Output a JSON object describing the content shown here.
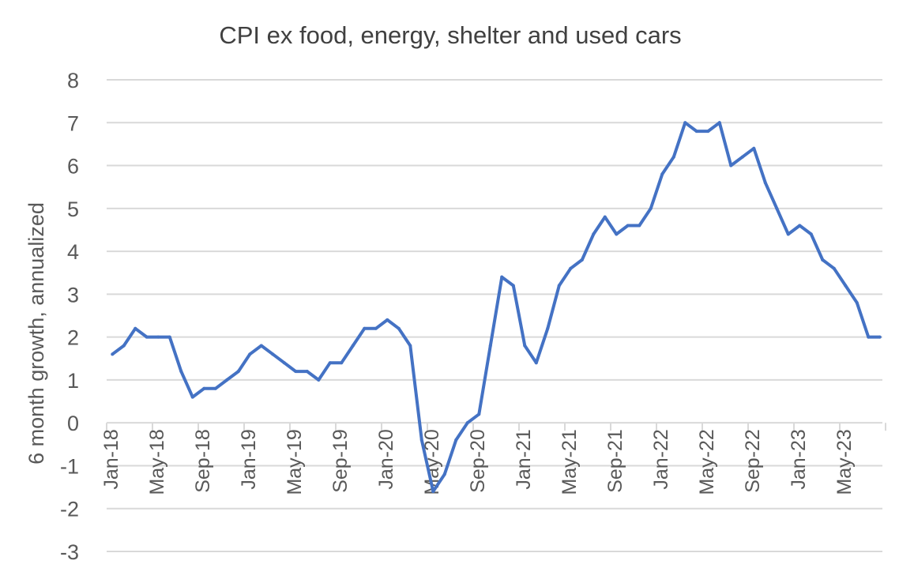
{
  "chart_data": {
    "type": "line",
    "title": "CPI ex food, energy, shelter and used cars",
    "xlabel": "",
    "ylabel": "6 month growth, annualized",
    "ylim": [
      -3,
      8
    ],
    "yticks": [
      "8",
      "7",
      "6",
      "5",
      "4",
      "3",
      "2",
      "1",
      "0",
      "-1",
      "-2",
      "-3"
    ],
    "grid": true,
    "line_color": "#4472C4",
    "x": [
      "Jan-18",
      "Feb-18",
      "Mar-18",
      "Apr-18",
      "May-18",
      "Jun-18",
      "Jul-18",
      "Aug-18",
      "Sep-18",
      "Oct-18",
      "Nov-18",
      "Dec-18",
      "Jan-19",
      "Feb-19",
      "Mar-19",
      "Apr-19",
      "May-19",
      "Jun-19",
      "Jul-19",
      "Aug-19",
      "Sep-19",
      "Oct-19",
      "Nov-19",
      "Dec-19",
      "Jan-20",
      "Feb-20",
      "Mar-20",
      "Apr-20",
      "May-20",
      "Jun-20",
      "Jul-20",
      "Aug-20",
      "Sep-20",
      "Oct-20",
      "Nov-20",
      "Dec-20",
      "Jan-21",
      "Feb-21",
      "Mar-21",
      "Apr-21",
      "May-21",
      "Jun-21",
      "Jul-21",
      "Aug-21",
      "Sep-21",
      "Oct-21",
      "Nov-21",
      "Dec-21",
      "Jan-22",
      "Feb-22",
      "Mar-22",
      "Apr-22",
      "May-22",
      "Jun-22",
      "Jul-22",
      "Aug-22",
      "Sep-22",
      "Oct-22",
      "Nov-22",
      "Dec-22",
      "Jan-23",
      "Feb-23",
      "Mar-23",
      "Apr-23",
      "May-23",
      "Jun-23",
      "Jul-23",
      "Aug-23"
    ],
    "xtick_labels": [
      "Jan-18",
      "May-18",
      "Sep-18",
      "Jan-19",
      "May-19",
      "Sep-19",
      "Jan-20",
      "May-20",
      "Sep-20",
      "Jan-21",
      "May-21",
      "Sep-21",
      "Jan-22",
      "May-22",
      "Sep-22",
      "Jan-23",
      "May-23"
    ],
    "values": [
      1.6,
      1.8,
      2.2,
      2.0,
      2.0,
      2.0,
      1.2,
      0.6,
      0.8,
      0.8,
      1.0,
      1.2,
      1.6,
      1.8,
      1.6,
      1.4,
      1.2,
      1.2,
      1.0,
      1.4,
      1.4,
      1.8,
      2.2,
      2.2,
      2.4,
      2.2,
      1.8,
      -0.4,
      -1.6,
      -1.2,
      -0.4,
      0.0,
      0.2,
      1.8,
      3.4,
      3.2,
      1.8,
      1.4,
      2.2,
      3.2,
      3.6,
      3.8,
      4.4,
      4.8,
      4.4,
      4.6,
      4.6,
      5.0,
      5.8,
      6.2,
      7.0,
      6.8,
      6.8,
      7.0,
      6.0,
      6.2,
      6.4,
      5.6,
      5.0,
      4.4,
      4.6,
      4.4,
      3.8,
      3.6,
      3.2,
      2.8,
      2.0,
      2.0
    ]
  }
}
